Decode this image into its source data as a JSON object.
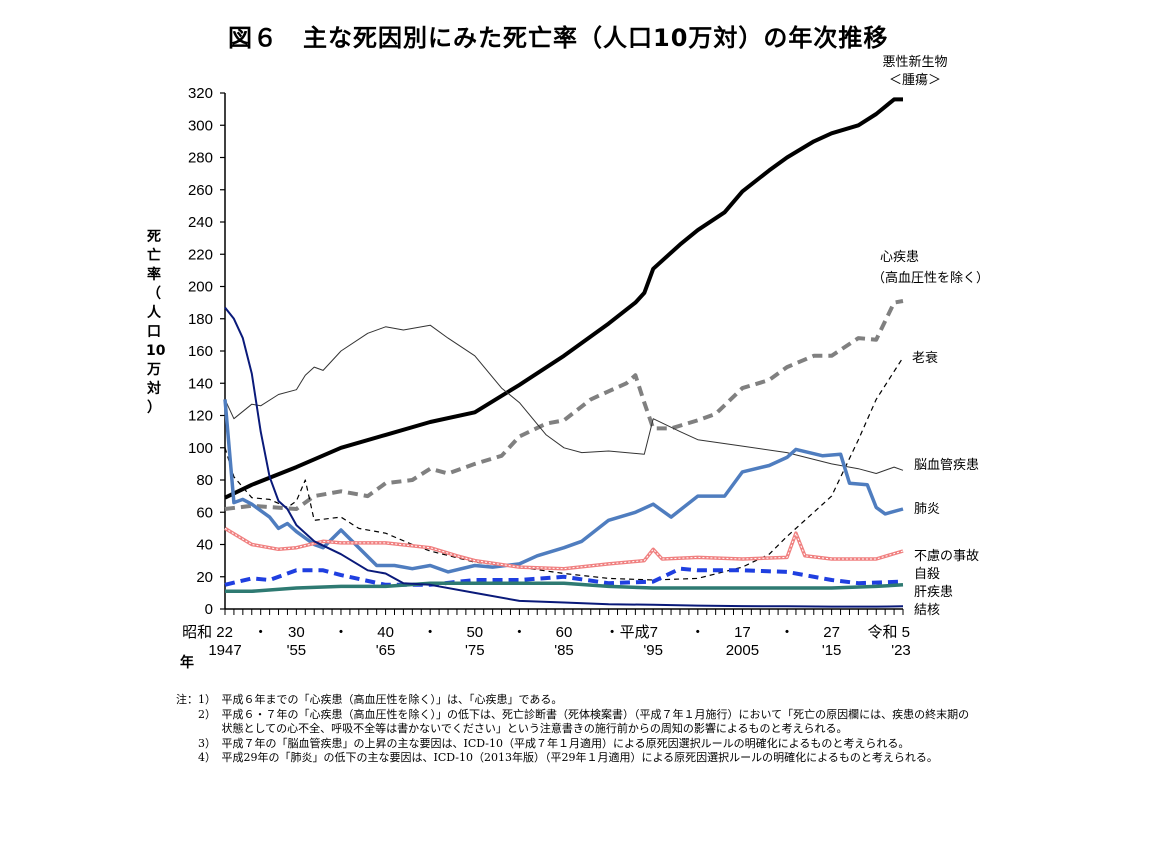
{
  "chart_data": {
    "type": "line",
    "title": "図６　主な死因別にみた死亡率（人口10万対）の年次推移",
    "ylabel": "死亡率（人口10万対）",
    "xlabel": "年",
    "ylim": [
      0,
      320
    ],
    "yticks": [
      0,
      20,
      40,
      60,
      80,
      100,
      120,
      140,
      160,
      180,
      200,
      220,
      240,
      260,
      280,
      300,
      320
    ],
    "xlim": [
      1947,
      2023
    ],
    "grid": false,
    "xtick_labels": [
      {
        "year": 1947,
        "era": "昭和 22",
        "western": "1947"
      },
      {
        "year": 1951,
        "era": "・",
        "western": ""
      },
      {
        "year": 1955,
        "era": "30",
        "western": "'55"
      },
      {
        "year": 1960,
        "era": "・",
        "western": ""
      },
      {
        "year": 1965,
        "era": "40",
        "western": "'65"
      },
      {
        "year": 1970,
        "era": "・",
        "western": ""
      },
      {
        "year": 1975,
        "era": "50",
        "western": "'75"
      },
      {
        "year": 1980,
        "era": "・",
        "western": ""
      },
      {
        "year": 1985,
        "era": "60",
        "western": "'85"
      },
      {
        "year": 1990,
        "era": "・平成7",
        "western": ""
      },
      {
        "year": 1995,
        "era": "",
        "western": "'95"
      },
      {
        "year": 2000,
        "era": "・",
        "western": ""
      },
      {
        "year": 2005,
        "era": "17",
        "western": "2005"
      },
      {
        "year": 2010,
        "era": "・",
        "western": ""
      },
      {
        "year": 2015,
        "era": "27",
        "western": "'15"
      },
      {
        "year": 2023,
        "era": "令和 5",
        "western": "'23"
      }
    ],
    "series": [
      {
        "name": "悪性新生物＜腫瘍＞",
        "label_lines": [
          "悪性新生物",
          "＜腫瘍＞"
        ],
        "color": "#000000",
        "style": "solid-thick",
        "points": [
          [
            1947,
            69
          ],
          [
            1950,
            77
          ],
          [
            1955,
            88
          ],
          [
            1960,
            100
          ],
          [
            1965,
            108
          ],
          [
            1970,
            116
          ],
          [
            1975,
            122
          ],
          [
            1980,
            139
          ],
          [
            1985,
            157
          ],
          [
            1990,
            177
          ],
          [
            1993,
            190
          ],
          [
            1994,
            196
          ],
          [
            1995,
            211
          ],
          [
            1998,
            226
          ],
          [
            2000,
            235
          ],
          [
            2003,
            246
          ],
          [
            2005,
            259
          ],
          [
            2008,
            272
          ],
          [
            2010,
            280
          ],
          [
            2013,
            290
          ],
          [
            2015,
            295
          ],
          [
            2018,
            300
          ],
          [
            2020,
            307
          ],
          [
            2022,
            316
          ],
          [
            2023,
            316
          ]
        ]
      },
      {
        "name": "心疾患（高血圧性を除く）",
        "label_lines": [
          "心疾患",
          "（高血圧性を除く）"
        ],
        "color": "#808080",
        "style": "dash-thick",
        "points": [
          [
            1947,
            62
          ],
          [
            1950,
            64
          ],
          [
            1955,
            62
          ],
          [
            1957,
            70
          ],
          [
            1960,
            73
          ],
          [
            1963,
            70
          ],
          [
            1965,
            78
          ],
          [
            1968,
            80
          ],
          [
            1970,
            87
          ],
          [
            1972,
            84
          ],
          [
            1975,
            90
          ],
          [
            1978,
            95
          ],
          [
            1980,
            107
          ],
          [
            1983,
            115
          ],
          [
            1985,
            117
          ],
          [
            1988,
            130
          ],
          [
            1990,
            135
          ],
          [
            1992,
            140
          ],
          [
            1993,
            145
          ],
          [
            1994,
            128
          ],
          [
            1995,
            112
          ],
          [
            1997,
            112
          ],
          [
            2000,
            117
          ],
          [
            2002,
            121
          ],
          [
            2005,
            137
          ],
          [
            2008,
            142
          ],
          [
            2010,
            150
          ],
          [
            2013,
            157
          ],
          [
            2015,
            157
          ],
          [
            2018,
            168
          ],
          [
            2020,
            167
          ],
          [
            2022,
            190
          ],
          [
            2023,
            191
          ]
        ]
      },
      {
        "name": "老衰",
        "label_lines": [
          "老衰"
        ],
        "color": "#000000",
        "style": "dash-thin",
        "points": [
          [
            1947,
            100
          ],
          [
            1948,
            82
          ],
          [
            1950,
            69
          ],
          [
            1952,
            68
          ],
          [
            1954,
            63
          ],
          [
            1955,
            67
          ],
          [
            1956,
            80
          ],
          [
            1957,
            55
          ],
          [
            1960,
            57
          ],
          [
            1962,
            50
          ],
          [
            1965,
            47
          ],
          [
            1968,
            40
          ],
          [
            1970,
            36
          ],
          [
            1975,
            29
          ],
          [
            1980,
            26
          ],
          [
            1985,
            22
          ],
          [
            1990,
            19
          ],
          [
            1995,
            18
          ],
          [
            2000,
            19
          ],
          [
            2005,
            26
          ],
          [
            2008,
            34
          ],
          [
            2010,
            45
          ],
          [
            2013,
            60
          ],
          [
            2015,
            70
          ],
          [
            2018,
            105
          ],
          [
            2020,
            130
          ],
          [
            2023,
            156
          ]
        ]
      },
      {
        "name": "脳血管疾患",
        "label_lines": [
          "脳血管疾患"
        ],
        "color": "#333333",
        "style": "solid-thin",
        "points": [
          [
            1947,
            130
          ],
          [
            1948,
            118
          ],
          [
            1950,
            127
          ],
          [
            1951,
            126
          ],
          [
            1953,
            133
          ],
          [
            1955,
            136
          ],
          [
            1956,
            145
          ],
          [
            1957,
            150
          ],
          [
            1958,
            148
          ],
          [
            1960,
            160
          ],
          [
            1963,
            171
          ],
          [
            1965,
            175
          ],
          [
            1967,
            173
          ],
          [
            1970,
            176
          ],
          [
            1972,
            168
          ],
          [
            1975,
            157
          ],
          [
            1978,
            137
          ],
          [
            1980,
            128
          ],
          [
            1983,
            108
          ],
          [
            1985,
            100
          ],
          [
            1987,
            97
          ],
          [
            1990,
            98
          ],
          [
            1994,
            96
          ],
          [
            1995,
            118
          ],
          [
            1998,
            110
          ],
          [
            2000,
            105
          ],
          [
            2005,
            101
          ],
          [
            2010,
            97
          ],
          [
            2015,
            90
          ],
          [
            2018,
            87
          ],
          [
            2020,
            84
          ],
          [
            2022,
            88
          ],
          [
            2023,
            86
          ]
        ]
      },
      {
        "name": "肺炎",
        "label_lines": [
          "肺炎"
        ],
        "color": "#4F7DBF",
        "style": "solid-thick",
        "points": [
          [
            1947,
            130
          ],
          [
            1948,
            66
          ],
          [
            1949,
            68
          ],
          [
            1950,
            65
          ],
          [
            1952,
            57
          ],
          [
            1953,
            50
          ],
          [
            1954,
            53
          ],
          [
            1955,
            48
          ],
          [
            1957,
            40
          ],
          [
            1958,
            38
          ],
          [
            1960,
            49
          ],
          [
            1962,
            38
          ],
          [
            1964,
            27
          ],
          [
            1966,
            27
          ],
          [
            1968,
            25
          ],
          [
            1970,
            27
          ],
          [
            1972,
            23
          ],
          [
            1975,
            27
          ],
          [
            1977,
            26
          ],
          [
            1980,
            28
          ],
          [
            1982,
            33
          ],
          [
            1985,
            38
          ],
          [
            1987,
            42
          ],
          [
            1990,
            55
          ],
          [
            1993,
            60
          ],
          [
            1995,
            65
          ],
          [
            1997,
            57
          ],
          [
            2000,
            70
          ],
          [
            2003,
            70
          ],
          [
            2005,
            85
          ],
          [
            2008,
            89
          ],
          [
            2010,
            94
          ],
          [
            2011,
            99
          ],
          [
            2014,
            95
          ],
          [
            2016,
            96
          ],
          [
            2017,
            78
          ],
          [
            2019,
            77
          ],
          [
            2020,
            63
          ],
          [
            2021,
            59
          ],
          [
            2023,
            62
          ]
        ]
      },
      {
        "name": "不慮の事故",
        "label_lines": [
          "不慮の事故"
        ],
        "color": "#F08080",
        "style": "dotted-double",
        "points": [
          [
            1947,
            50
          ],
          [
            1950,
            40
          ],
          [
            1953,
            37
          ],
          [
            1955,
            38
          ],
          [
            1958,
            42
          ],
          [
            1960,
            41
          ],
          [
            1965,
            41
          ],
          [
            1970,
            38
          ],
          [
            1973,
            33
          ],
          [
            1975,
            30
          ],
          [
            1980,
            26
          ],
          [
            1985,
            25
          ],
          [
            1990,
            28
          ],
          [
            1994,
            30
          ],
          [
            1995,
            37
          ],
          [
            1996,
            31
          ],
          [
            2000,
            32
          ],
          [
            2005,
            31
          ],
          [
            2010,
            32
          ],
          [
            2011,
            47
          ],
          [
            2012,
            33
          ],
          [
            2015,
            31
          ],
          [
            2020,
            31
          ],
          [
            2023,
            36
          ]
        ]
      },
      {
        "name": "自殺",
        "label_lines": [
          "自殺"
        ],
        "color": "#1F3FE0",
        "style": "dash-thick",
        "points": [
          [
            1947,
            15
          ],
          [
            1950,
            19
          ],
          [
            1952,
            18
          ],
          [
            1955,
            24
          ],
          [
            1958,
            24
          ],
          [
            1960,
            21
          ],
          [
            1965,
            15
          ],
          [
            1970,
            15
          ],
          [
            1975,
            18
          ],
          [
            1980,
            18
          ],
          [
            1985,
            20
          ],
          [
            1990,
            16
          ],
          [
            1995,
            17
          ],
          [
            1998,
            25
          ],
          [
            2000,
            24
          ],
          [
            2005,
            24
          ],
          [
            2010,
            23
          ],
          [
            2015,
            18
          ],
          [
            2018,
            16
          ],
          [
            2023,
            17
          ]
        ]
      },
      {
        "name": "肝疾患",
        "label_lines": [
          "肝疾患"
        ],
        "color": "#2E7A72",
        "style": "solid-thick",
        "points": [
          [
            1947,
            11
          ],
          [
            1950,
            11
          ],
          [
            1955,
            13
          ],
          [
            1960,
            14
          ],
          [
            1965,
            14
          ],
          [
            1970,
            16
          ],
          [
            1975,
            16
          ],
          [
            1980,
            16
          ],
          [
            1985,
            16
          ],
          [
            1990,
            14
          ],
          [
            1995,
            13
          ],
          [
            2000,
            13
          ],
          [
            2005,
            13
          ],
          [
            2010,
            13
          ],
          [
            2015,
            13
          ],
          [
            2020,
            14
          ],
          [
            2023,
            15
          ]
        ]
      },
      {
        "name": "結核",
        "label_lines": [
          "結核"
        ],
        "color": "#0A1A7A",
        "style": "solid-medium",
        "points": [
          [
            1947,
            187
          ],
          [
            1948,
            180
          ],
          [
            1949,
            168
          ],
          [
            1950,
            146
          ],
          [
            1951,
            110
          ],
          [
            1952,
            82
          ],
          [
            1953,
            67
          ],
          [
            1954,
            62
          ],
          [
            1955,
            52
          ],
          [
            1957,
            42
          ],
          [
            1960,
            34
          ],
          [
            1963,
            24
          ],
          [
            1965,
            22
          ],
          [
            1967,
            16
          ],
          [
            1970,
            15
          ],
          [
            1975,
            10
          ],
          [
            1980,
            5
          ],
          [
            1985,
            4
          ],
          [
            1990,
            3
          ],
          [
            1995,
            2.6
          ],
          [
            2000,
            2.1
          ],
          [
            2005,
            1.8
          ],
          [
            2010,
            1.7
          ],
          [
            2015,
            1.5
          ],
          [
            2020,
            1.5
          ],
          [
            2023,
            1.7
          ]
        ]
      }
    ]
  },
  "ylabel_chars": [
    "死",
    "亡",
    "率",
    "（",
    "人",
    "口",
    "10",
    "万",
    "対",
    "）"
  ],
  "xunit": "年",
  "notes": [
    {
      "num": "注：1）　",
      "text": "平成６年までの「心疾患（高血圧性を除く）」は、「心疾患」である。"
    },
    {
      "num": "　　2）　",
      "text": "平成６・７年の「心疾患（高血圧性を除く）」の低下は、死亡診断書（死体検案書）（平成７年１月施行）において「死亡の原因欄には、疾患の終末期の状態としての心不全、呼吸不全等は書かないでください」という注意書きの施行前からの周知の影響によるものと考えられる。"
    },
    {
      "num": "　　3）　",
      "text": "平成７年の「脳血管疾患」の上昇の主な要因は、ICD-10（平成７年１月適用）による原死因選択ルールの明確化によるものと考えられる。"
    },
    {
      "num": "　　4）　",
      "text": "平成29年の「肺炎」の低下の主な要因は、ICD-10（2013年版）（平29年１月適用）による原死因選択ルールの明確化によるものと考えられる。"
    }
  ]
}
